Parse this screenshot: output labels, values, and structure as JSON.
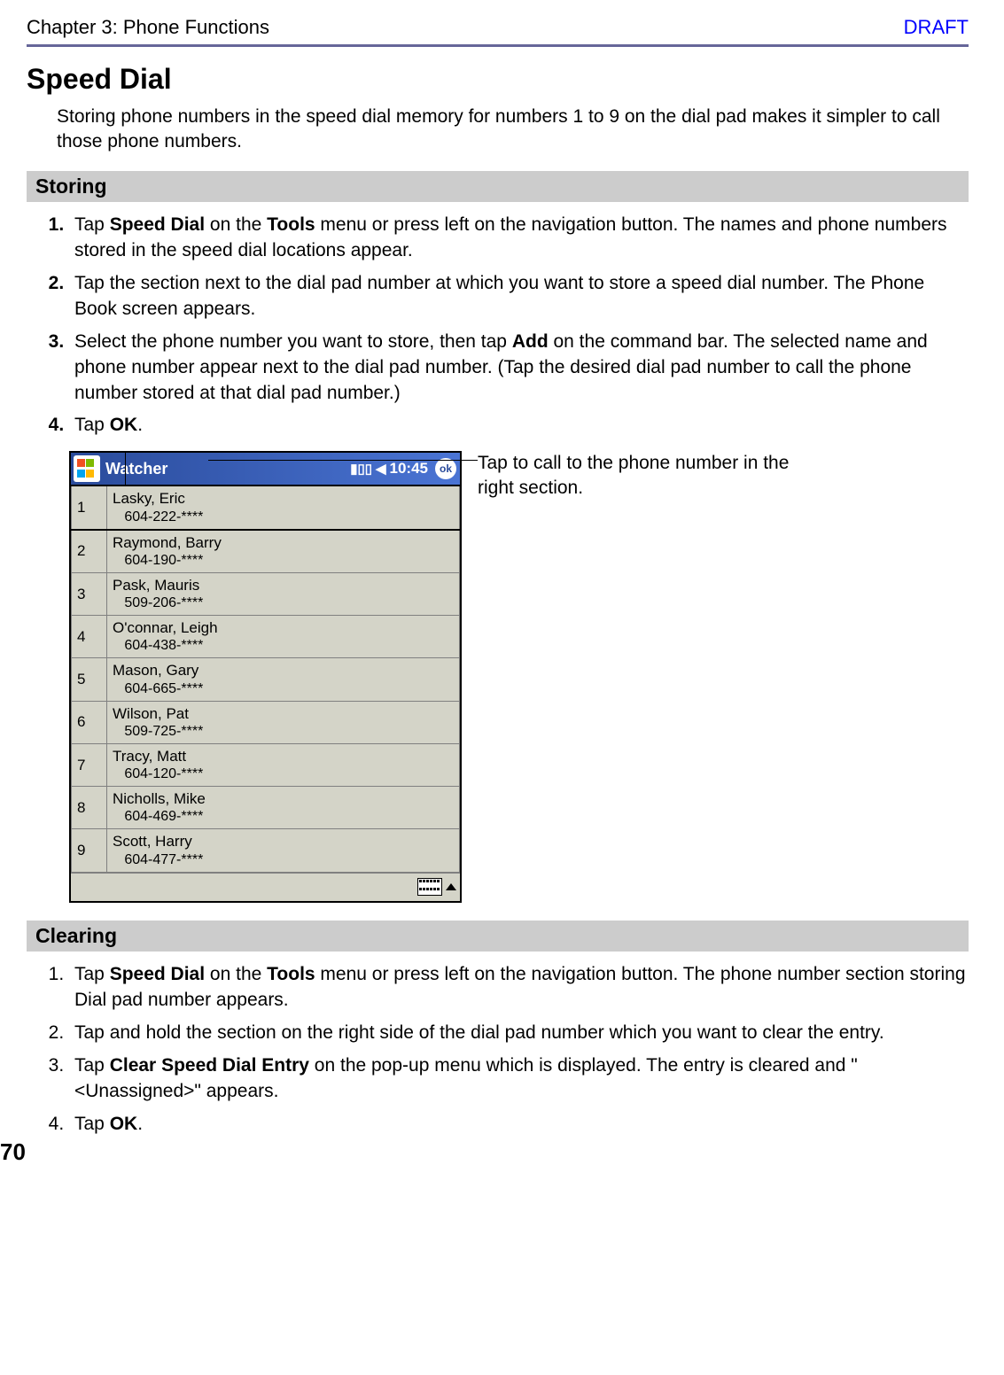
{
  "header": {
    "chapter": "Chapter 3: Phone Functions",
    "draft": "DRAFT"
  },
  "colors": {
    "rule": "#666699",
    "section_bg": "#cccccc",
    "draft_color": "#0000ff",
    "titlebar_start": "#2a4b9b",
    "titlebar_end": "#4a74d4",
    "device_bg": "#d4d4c8"
  },
  "h1": "Speed Dial",
  "intro": "Storing phone numbers in the speed dial memory for numbers 1 to 9 on the dial pad makes it simpler to call those phone numbers.",
  "section_storing": "Storing",
  "storing_steps": {
    "s1a": "Tap ",
    "s1b": "Speed Dial",
    "s1c": " on the ",
    "s1d": "Tools",
    "s1e": " menu or press left on the navigation button. The names and phone numbers stored in the speed dial locations appear.",
    "s2": "Tap the section next to the dial pad number at which you want to store a speed dial number. The Phone Book screen appears.",
    "s3a": "Select the phone number you want to store, then tap ",
    "s3b": "Add",
    "s3c": " on the command bar. The selected name and phone number appear next to the dial pad number. (Tap the desired dial pad number to call the phone number stored at that dial pad number.)",
    "s4a": "Tap ",
    "s4b": "OK",
    "s4c": "."
  },
  "callout": "Tap to call to the phone number in the right section.",
  "device": {
    "title": "Watcher",
    "time": "10:45",
    "ok": "ok",
    "entries": [
      {
        "num": "1",
        "name": "Lasky, Eric",
        "phone": "604-222-****"
      },
      {
        "num": "2",
        "name": "Raymond, Barry",
        "phone": "604-190-****"
      },
      {
        "num": "3",
        "name": "Pask, Mauris",
        "phone": "509-206-****"
      },
      {
        "num": "4",
        "name": "O'connar, Leigh",
        "phone": "604-438-****"
      },
      {
        "num": "5",
        "name": "Mason, Gary",
        "phone": "604-665-****"
      },
      {
        "num": "6",
        "name": "Wilson, Pat",
        "phone": "509-725-****"
      },
      {
        "num": "7",
        "name": "Tracy, Matt",
        "phone": "604-120-****"
      },
      {
        "num": "8",
        "name": "Nicholls, Mike",
        "phone": "604-469-****"
      },
      {
        "num": "9",
        "name": "Scott, Harry",
        "phone": "604-477-****"
      }
    ]
  },
  "section_clearing": "Clearing",
  "clearing_steps": {
    "s1a": "Tap ",
    "s1b": "Speed Dial",
    "s1c": " on the ",
    "s1d": "Tools",
    "s1e": " menu or press left on the navigation button. The phone number section storing Dial pad number appears.",
    "s2": "Tap and hold the section on the right side of the dial pad number which you want to clear the entry.",
    "s3a": "Tap ",
    "s3b": "Clear Speed Dial Entry",
    "s3c": " on the pop-up menu which is displayed. The entry is cleared and \"<Unassigned>\" appears.",
    "s4a": "Tap ",
    "s4b": "OK",
    "s4c": "."
  },
  "page_number": "70"
}
